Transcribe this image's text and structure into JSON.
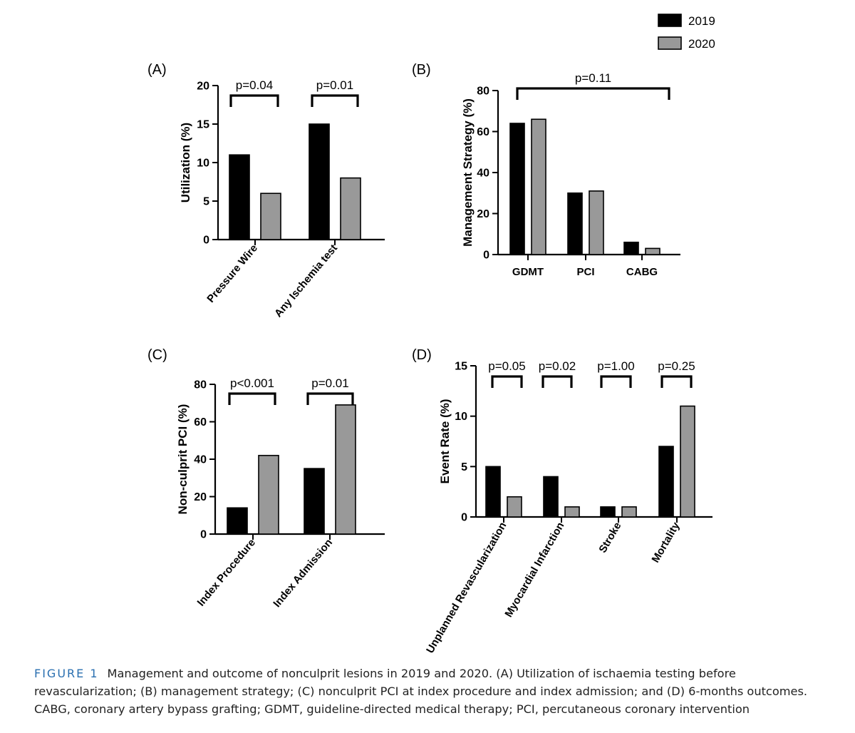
{
  "legend": {
    "items": [
      {
        "label": "2019",
        "color": "#000000"
      },
      {
        "label": "2020",
        "color": "#999999"
      }
    ]
  },
  "colors": {
    "s2019": "#000000",
    "s2020": "#999999"
  },
  "caption": {
    "label": "FIGURE 1",
    "text": "Management and outcome of nonculprit lesions in 2019 and 2020. (A) Utilization of ischaemia testing before revascularization; (B) management strategy; (C) nonculprit PCI at index procedure and index admission; and (D) 6-months outcomes. CABG, coronary artery bypass grafting; GDMT, guideline-directed medical therapy; PCI, percutaneous coronary intervention"
  },
  "chart_data": [
    {
      "panel": "(A)",
      "type": "bar",
      "ylabel": "Utilization (%)",
      "ylim": [
        0,
        20
      ],
      "yticks": [
        0,
        5,
        10,
        15,
        20
      ],
      "categories": [
        "Pressure Wire",
        "Any Ischemia test"
      ],
      "series": [
        {
          "name": "2019",
          "values": [
            11,
            15
          ]
        },
        {
          "name": "2020",
          "values": [
            6,
            8
          ]
        }
      ],
      "annotations": [
        {
          "text": "p=0.04",
          "span": [
            0,
            0
          ]
        },
        {
          "text": "p=0.01",
          "span": [
            1,
            1
          ]
        }
      ]
    },
    {
      "panel": "(B)",
      "type": "bar",
      "ylabel": "Management Strategy (%)",
      "ylim": [
        0,
        80
      ],
      "yticks": [
        0,
        20,
        40,
        60,
        80
      ],
      "categories": [
        "GDMT",
        "PCI",
        "CABG"
      ],
      "series": [
        {
          "name": "2019",
          "values": [
            64,
            30,
            6
          ]
        },
        {
          "name": "2020",
          "values": [
            66,
            31,
            3
          ]
        }
      ],
      "annotations": [
        {
          "text": "p=0.11",
          "span": [
            0,
            2
          ]
        }
      ]
    },
    {
      "panel": "(C)",
      "type": "bar",
      "ylabel": "Non-culprit PCI (%)",
      "ylim": [
        0,
        80
      ],
      "yticks": [
        0,
        20,
        40,
        60,
        80
      ],
      "categories": [
        "Index Procedure",
        "Index Admission"
      ],
      "series": [
        {
          "name": "2019",
          "values": [
            14,
            35
          ]
        },
        {
          "name": "2020",
          "values": [
            42,
            69
          ]
        }
      ],
      "annotations": [
        {
          "text": "p<0.001",
          "span": [
            0,
            0
          ]
        },
        {
          "text": "p=0.01",
          "span": [
            1,
            1
          ]
        }
      ]
    },
    {
      "panel": "(D)",
      "type": "bar",
      "ylabel": "Event Rate (%)",
      "ylim": [
        0,
        15
      ],
      "yticks": [
        0,
        5,
        10,
        15
      ],
      "categories": [
        "Unplanned Revascularization",
        "Myocardial Infarction",
        "Stroke",
        "Mortality"
      ],
      "series": [
        {
          "name": "2019",
          "values": [
            5,
            4,
            1,
            7
          ]
        },
        {
          "name": "2020",
          "values": [
            2,
            1,
            1,
            11
          ]
        }
      ],
      "annotations": [
        {
          "text": "p=0.05",
          "span": [
            0,
            0
          ]
        },
        {
          "text": "p=0.02",
          "span": [
            1,
            1
          ]
        },
        {
          "text": "p=1.00",
          "span": [
            2,
            2
          ]
        },
        {
          "text": "p=0.25",
          "span": [
            3,
            3
          ]
        }
      ]
    }
  ]
}
